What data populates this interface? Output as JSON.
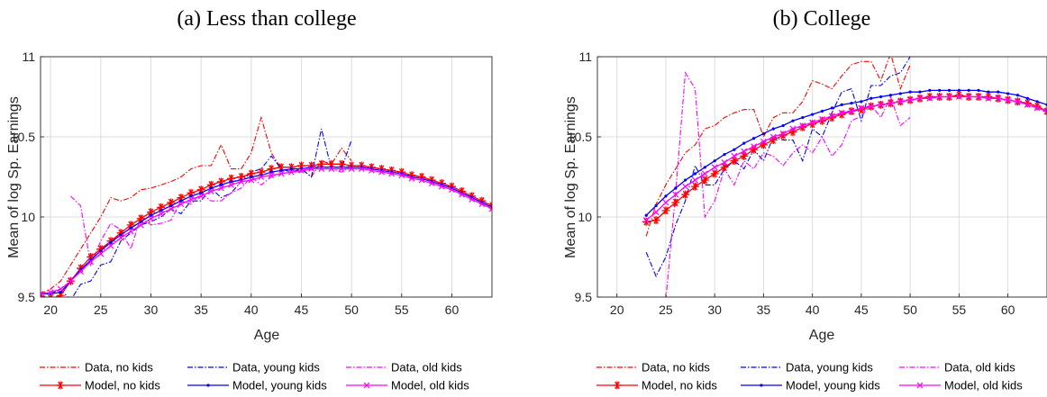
{
  "chart_data": [
    {
      "type": "line",
      "title": "(a) Less than college",
      "xlabel": "Age",
      "ylabel": "Mean of log Sp. Earnings",
      "xlim": [
        19,
        64
      ],
      "ylim": [
        9.5,
        11
      ],
      "xticks": [
        "20",
        "25",
        "30",
        "35",
        "40",
        "45",
        "50",
        "55",
        "60"
      ],
      "yticks": [
        "9.5",
        "10",
        "10.5",
        "11"
      ],
      "grid": true,
      "legend_position": "below",
      "series": [
        {
          "name": "Data, no kids",
          "color": "#FF0000",
          "style": "dashdot",
          "marker": "none",
          "x": [
            19,
            20,
            21,
            22,
            23,
            24,
            25,
            26,
            27,
            28,
            29,
            30,
            31,
            32,
            33,
            34,
            35,
            36,
            37,
            38,
            39,
            40,
            41,
            42,
            43,
            44,
            45,
            46,
            47,
            48,
            49,
            50
          ],
          "y": [
            9.52,
            9.55,
            9.6,
            9.7,
            9.8,
            9.9,
            10.0,
            10.12,
            10.1,
            10.12,
            10.17,
            10.18,
            10.2,
            10.22,
            10.25,
            10.3,
            10.32,
            10.32,
            10.45,
            10.3,
            10.3,
            10.4,
            10.62,
            10.4,
            10.3,
            10.28,
            10.3,
            10.25,
            10.35,
            10.33,
            10.43,
            10.35
          ]
        },
        {
          "name": "Data, young kids",
          "color": "#0000FF",
          "style": "dashdot",
          "marker": "none",
          "x": [
            19,
            20,
            21,
            22,
            23,
            24,
            25,
            26,
            27,
            28,
            29,
            30,
            31,
            32,
            33,
            34,
            35,
            36,
            37,
            38,
            39,
            40,
            41,
            42,
            43,
            44,
            45,
            46,
            47,
            48,
            49,
            50
          ],
          "y": [
            9.52,
            9.52,
            9.55,
            9.48,
            9.58,
            9.6,
            9.7,
            9.72,
            9.85,
            9.9,
            9.95,
            9.97,
            10.0,
            10.05,
            10.02,
            10.1,
            10.1,
            10.18,
            10.12,
            10.15,
            10.22,
            10.28,
            10.3,
            10.38,
            10.3,
            10.28,
            10.3,
            10.25,
            10.55,
            10.3,
            10.3,
            10.48
          ]
        },
        {
          "name": "Data, old kids",
          "color": "#FF00FF",
          "style": "dashdot",
          "marker": "none",
          "x": [
            22,
            23,
            24,
            25,
            26,
            27,
            28,
            29,
            30,
            31,
            32,
            33,
            34,
            35,
            36,
            37,
            38,
            39,
            40,
            41,
            42,
            43,
            44,
            45,
            46,
            47,
            48,
            49,
            50
          ],
          "y": [
            10.13,
            10.07,
            9.7,
            9.85,
            9.96,
            9.92,
            9.8,
            10.0,
            9.95,
            9.96,
            9.98,
            10.1,
            10.08,
            10.15,
            10.1,
            10.1,
            10.15,
            10.18,
            10.25,
            10.2,
            10.25,
            10.27,
            10.28,
            10.28,
            10.3,
            10.3,
            10.3,
            10.28,
            10.32
          ]
        },
        {
          "name": "Model, no kids",
          "color": "#FF0000",
          "style": "solid",
          "marker": "star",
          "x": [
            19,
            20,
            21,
            22,
            23,
            24,
            25,
            26,
            27,
            28,
            29,
            30,
            31,
            32,
            33,
            34,
            35,
            36,
            37,
            38,
            39,
            40,
            41,
            42,
            43,
            44,
            45,
            46,
            47,
            48,
            49,
            50,
            51,
            52,
            53,
            54,
            55,
            56,
            57,
            58,
            59,
            60,
            61,
            62,
            63,
            64
          ],
          "y": [
            9.51,
            9.49,
            9.51,
            9.6,
            9.68,
            9.75,
            9.8,
            9.85,
            9.9,
            9.95,
            9.99,
            10.03,
            10.06,
            10.09,
            10.12,
            10.15,
            10.17,
            10.2,
            10.22,
            10.24,
            10.25,
            10.27,
            10.28,
            10.3,
            10.31,
            10.31,
            10.32,
            10.32,
            10.33,
            10.33,
            10.33,
            10.32,
            10.32,
            10.31,
            10.3,
            10.29,
            10.28,
            10.26,
            10.25,
            10.23,
            10.21,
            10.19,
            10.16,
            10.13,
            10.1,
            10.07
          ]
        },
        {
          "name": "Model, young kids",
          "color": "#0000FF",
          "style": "solid",
          "marker": "dot",
          "x": [
            19,
            20,
            21,
            22,
            23,
            24,
            25,
            26,
            27,
            28,
            29,
            30,
            31,
            32,
            33,
            34,
            35,
            36,
            37,
            38,
            39,
            40,
            41,
            42,
            43,
            44,
            45,
            46,
            47,
            48,
            49,
            50,
            51,
            52,
            53,
            54,
            55,
            56,
            57,
            58,
            59,
            60,
            61,
            62,
            63,
            64
          ],
          "y": [
            9.52,
            9.52,
            9.53,
            9.6,
            9.67,
            9.73,
            9.79,
            9.84,
            9.89,
            9.93,
            9.97,
            10.01,
            10.04,
            10.07,
            10.1,
            10.13,
            10.15,
            10.18,
            10.2,
            10.22,
            10.23,
            10.25,
            10.26,
            10.28,
            10.29,
            10.3,
            10.3,
            10.31,
            10.31,
            10.31,
            10.31,
            10.31,
            10.31,
            10.3,
            10.29,
            10.28,
            10.27,
            10.25,
            10.24,
            10.22,
            10.2,
            10.18,
            10.15,
            10.12,
            10.09,
            10.06
          ]
        },
        {
          "name": "Model, old kids",
          "color": "#FF00FF",
          "style": "solid",
          "marker": "x",
          "x": [
            19,
            20,
            21,
            22,
            23,
            24,
            25,
            26,
            27,
            28,
            29,
            30,
            31,
            32,
            33,
            34,
            35,
            36,
            37,
            38,
            39,
            40,
            41,
            42,
            43,
            44,
            45,
            46,
            47,
            48,
            49,
            50,
            51,
            52,
            53,
            54,
            55,
            56,
            57,
            58,
            59,
            60,
            61,
            62,
            63,
            64
          ],
          "y": [
            9.52,
            9.53,
            9.55,
            9.6,
            9.66,
            9.72,
            9.77,
            9.82,
            9.87,
            9.91,
            9.95,
            9.99,
            10.02,
            10.05,
            10.08,
            10.11,
            10.13,
            10.16,
            10.18,
            10.2,
            10.22,
            10.23,
            10.25,
            10.26,
            10.27,
            10.28,
            10.29,
            10.3,
            10.3,
            10.3,
            10.3,
            10.3,
            10.3,
            10.29,
            10.28,
            10.27,
            10.26,
            10.24,
            10.23,
            10.21,
            10.19,
            10.17,
            10.14,
            10.11,
            10.08,
            10.05
          ]
        }
      ]
    },
    {
      "type": "line",
      "title": "(b) College",
      "xlabel": "Age",
      "ylabel": "Mean of log Sp. Earnings",
      "xlim": [
        18,
        64
      ],
      "ylim": [
        9.5,
        11
      ],
      "xticks": [
        "20",
        "25",
        "30",
        "35",
        "40",
        "45",
        "50",
        "55",
        "60"
      ],
      "yticks": [
        "9.5",
        "10",
        "10.5",
        "11"
      ],
      "grid": true,
      "legend_position": "below",
      "series": [
        {
          "name": "Data, no kids",
          "color": "#FF0000",
          "style": "dashdot",
          "marker": "none",
          "x": [
            23,
            24,
            25,
            26,
            27,
            28,
            29,
            30,
            31,
            32,
            33,
            34,
            35,
            36,
            37,
            38,
            39,
            40,
            41,
            42,
            43,
            44,
            45,
            46,
            47,
            48,
            49,
            50
          ],
          "y": [
            9.88,
            10.08,
            10.2,
            10.3,
            10.4,
            10.45,
            10.55,
            10.57,
            10.62,
            10.65,
            10.67,
            10.67,
            10.5,
            10.62,
            10.65,
            10.65,
            10.72,
            10.85,
            10.83,
            10.8,
            10.88,
            10.95,
            10.97,
            10.97,
            10.85,
            11.02,
            10.8,
            10.95
          ]
        },
        {
          "name": "Data, young kids",
          "color": "#0000FF",
          "style": "dashdot",
          "marker": "none",
          "x": [
            23,
            24,
            25,
            26,
            27,
            28,
            29,
            30,
            31,
            32,
            33,
            34,
            35,
            36,
            37,
            38,
            39,
            40,
            41,
            42,
            43,
            44,
            45,
            46,
            47,
            48,
            49,
            50
          ],
          "y": [
            9.78,
            9.63,
            9.75,
            9.95,
            10.1,
            10.32,
            10.2,
            10.2,
            10.3,
            10.35,
            10.3,
            10.42,
            10.35,
            10.5,
            10.48,
            10.48,
            10.35,
            10.55,
            10.5,
            10.65,
            10.78,
            10.8,
            10.6,
            10.82,
            10.82,
            10.88,
            10.9,
            11.0
          ]
        },
        {
          "name": "Data, old kids",
          "color": "#FF00FF",
          "style": "dashdot",
          "marker": "none",
          "x": [
            25,
            26,
            27,
            28,
            29,
            30,
            31,
            32,
            33,
            34,
            35,
            36,
            37,
            38,
            39,
            40,
            41,
            42,
            43,
            44,
            45,
            46,
            47,
            48,
            49,
            50
          ],
          "y": [
            9.48,
            10.15,
            10.9,
            10.8,
            10.0,
            10.1,
            10.3,
            10.2,
            10.35,
            10.3,
            10.4,
            10.38,
            10.32,
            10.4,
            10.45,
            10.4,
            10.5,
            10.38,
            10.45,
            10.6,
            10.63,
            10.7,
            10.62,
            10.75,
            10.57,
            10.62
          ]
        },
        {
          "name": "Model, no kids",
          "color": "#FF0000",
          "style": "solid",
          "marker": "star",
          "x": [
            23,
            24,
            25,
            26,
            27,
            28,
            29,
            30,
            31,
            32,
            33,
            34,
            35,
            36,
            37,
            38,
            39,
            40,
            41,
            42,
            43,
            44,
            45,
            46,
            47,
            48,
            49,
            50,
            51,
            52,
            53,
            54,
            55,
            56,
            57,
            58,
            59,
            60,
            61,
            62,
            63,
            64
          ],
          "y": [
            9.97,
            9.98,
            10.04,
            10.09,
            10.14,
            10.19,
            10.23,
            10.27,
            10.31,
            10.35,
            10.38,
            10.42,
            10.45,
            10.48,
            10.51,
            10.53,
            10.56,
            10.58,
            10.6,
            10.62,
            10.64,
            10.66,
            10.67,
            10.69,
            10.7,
            10.71,
            10.72,
            10.73,
            10.74,
            10.75,
            10.75,
            10.75,
            10.76,
            10.75,
            10.75,
            10.75,
            10.74,
            10.73,
            10.72,
            10.71,
            10.69,
            10.66
          ]
        },
        {
          "name": "Model, young kids",
          "color": "#0000FF",
          "style": "solid",
          "marker": "dot",
          "x": [
            23,
            24,
            25,
            26,
            27,
            28,
            29,
            30,
            31,
            32,
            33,
            34,
            35,
            36,
            37,
            38,
            39,
            40,
            41,
            42,
            43,
            44,
            45,
            46,
            47,
            48,
            49,
            50,
            51,
            52,
            53,
            54,
            55,
            56,
            57,
            58,
            59,
            60,
            61,
            62,
            63,
            64
          ],
          "y": [
            10.01,
            10.07,
            10.13,
            10.18,
            10.23,
            10.27,
            10.31,
            10.35,
            10.39,
            10.42,
            10.46,
            10.49,
            10.52,
            10.55,
            10.57,
            10.6,
            10.62,
            10.64,
            10.66,
            10.68,
            10.7,
            10.71,
            10.72,
            10.74,
            10.75,
            10.76,
            10.77,
            10.78,
            10.78,
            10.79,
            10.79,
            10.79,
            10.79,
            10.79,
            10.79,
            10.78,
            10.78,
            10.77,
            10.76,
            10.74,
            10.72,
            10.7
          ]
        },
        {
          "name": "Model, old kids",
          "color": "#FF00FF",
          "style": "solid",
          "marker": "x",
          "x": [
            23,
            24,
            25,
            26,
            27,
            28,
            29,
            30,
            31,
            32,
            33,
            34,
            35,
            36,
            37,
            38,
            39,
            40,
            41,
            42,
            43,
            44,
            45,
            46,
            47,
            48,
            49,
            50,
            51,
            52,
            53,
            54,
            55,
            56,
            57,
            58,
            59,
            60,
            61,
            62,
            63,
            64
          ],
          "y": [
            9.98,
            10.03,
            10.09,
            10.14,
            10.19,
            10.23,
            10.27,
            10.31,
            10.34,
            10.38,
            10.41,
            10.44,
            10.47,
            10.5,
            10.52,
            10.55,
            10.57,
            10.59,
            10.61,
            10.63,
            10.65,
            10.66,
            10.68,
            10.69,
            10.7,
            10.71,
            10.72,
            10.73,
            10.74,
            10.74,
            10.75,
            10.75,
            10.75,
            10.75,
            10.75,
            10.74,
            10.74,
            10.73,
            10.72,
            10.7,
            10.68,
            10.66
          ]
        }
      ]
    }
  ]
}
